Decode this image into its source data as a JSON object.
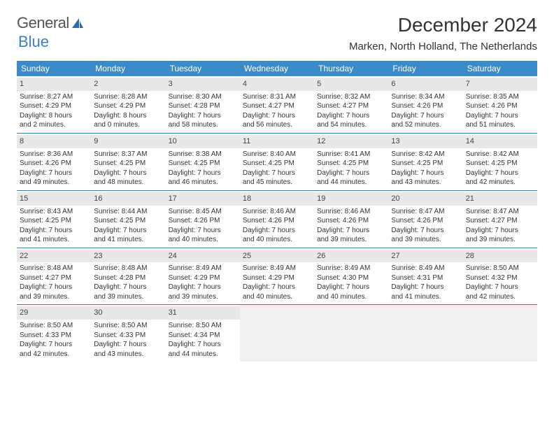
{
  "brand": {
    "part1": "General",
    "part2": "Blue"
  },
  "title": "December 2024",
  "location": "Marken, North Holland, The Netherlands",
  "weekdays": [
    "Sunday",
    "Monday",
    "Tuesday",
    "Wednesday",
    "Thursday",
    "Friday",
    "Saturday"
  ],
  "colors": {
    "header_bg": "#3b8bc9",
    "header_text": "#ffffff",
    "daynum_bg": "#e8e8e8",
    "week_divider": "#3b7fa8",
    "brand_blue": "#3b7fc4",
    "text": "#333333",
    "empty_bg": "#f0f0f0"
  },
  "fonts": {
    "month_title_pt": 28,
    "location_pt": 15,
    "weekday_pt": 12,
    "daynum_pt": 11,
    "body_pt": 10
  },
  "weeks": [
    [
      {
        "n": "1",
        "sunrise": "Sunrise: 8:27 AM",
        "sunset": "Sunset: 4:29 PM",
        "day1": "Daylight: 8 hours",
        "day2": "and 2 minutes."
      },
      {
        "n": "2",
        "sunrise": "Sunrise: 8:28 AM",
        "sunset": "Sunset: 4:29 PM",
        "day1": "Daylight: 8 hours",
        "day2": "and 0 minutes."
      },
      {
        "n": "3",
        "sunrise": "Sunrise: 8:30 AM",
        "sunset": "Sunset: 4:28 PM",
        "day1": "Daylight: 7 hours",
        "day2": "and 58 minutes."
      },
      {
        "n": "4",
        "sunrise": "Sunrise: 8:31 AM",
        "sunset": "Sunset: 4:27 PM",
        "day1": "Daylight: 7 hours",
        "day2": "and 56 minutes."
      },
      {
        "n": "5",
        "sunrise": "Sunrise: 8:32 AM",
        "sunset": "Sunset: 4:27 PM",
        "day1": "Daylight: 7 hours",
        "day2": "and 54 minutes."
      },
      {
        "n": "6",
        "sunrise": "Sunrise: 8:34 AM",
        "sunset": "Sunset: 4:26 PM",
        "day1": "Daylight: 7 hours",
        "day2": "and 52 minutes."
      },
      {
        "n": "7",
        "sunrise": "Sunrise: 8:35 AM",
        "sunset": "Sunset: 4:26 PM",
        "day1": "Daylight: 7 hours",
        "day2": "and 51 minutes."
      }
    ],
    [
      {
        "n": "8",
        "sunrise": "Sunrise: 8:36 AM",
        "sunset": "Sunset: 4:26 PM",
        "day1": "Daylight: 7 hours",
        "day2": "and 49 minutes."
      },
      {
        "n": "9",
        "sunrise": "Sunrise: 8:37 AM",
        "sunset": "Sunset: 4:25 PM",
        "day1": "Daylight: 7 hours",
        "day2": "and 48 minutes."
      },
      {
        "n": "10",
        "sunrise": "Sunrise: 8:38 AM",
        "sunset": "Sunset: 4:25 PM",
        "day1": "Daylight: 7 hours",
        "day2": "and 46 minutes."
      },
      {
        "n": "11",
        "sunrise": "Sunrise: 8:40 AM",
        "sunset": "Sunset: 4:25 PM",
        "day1": "Daylight: 7 hours",
        "day2": "and 45 minutes."
      },
      {
        "n": "12",
        "sunrise": "Sunrise: 8:41 AM",
        "sunset": "Sunset: 4:25 PM",
        "day1": "Daylight: 7 hours",
        "day2": "and 44 minutes."
      },
      {
        "n": "13",
        "sunrise": "Sunrise: 8:42 AM",
        "sunset": "Sunset: 4:25 PM",
        "day1": "Daylight: 7 hours",
        "day2": "and 43 minutes."
      },
      {
        "n": "14",
        "sunrise": "Sunrise: 8:42 AM",
        "sunset": "Sunset: 4:25 PM",
        "day1": "Daylight: 7 hours",
        "day2": "and 42 minutes."
      }
    ],
    [
      {
        "n": "15",
        "sunrise": "Sunrise: 8:43 AM",
        "sunset": "Sunset: 4:25 PM",
        "day1": "Daylight: 7 hours",
        "day2": "and 41 minutes."
      },
      {
        "n": "16",
        "sunrise": "Sunrise: 8:44 AM",
        "sunset": "Sunset: 4:25 PM",
        "day1": "Daylight: 7 hours",
        "day2": "and 41 minutes."
      },
      {
        "n": "17",
        "sunrise": "Sunrise: 8:45 AM",
        "sunset": "Sunset: 4:26 PM",
        "day1": "Daylight: 7 hours",
        "day2": "and 40 minutes."
      },
      {
        "n": "18",
        "sunrise": "Sunrise: 8:46 AM",
        "sunset": "Sunset: 4:26 PM",
        "day1": "Daylight: 7 hours",
        "day2": "and 40 minutes."
      },
      {
        "n": "19",
        "sunrise": "Sunrise: 8:46 AM",
        "sunset": "Sunset: 4:26 PM",
        "day1": "Daylight: 7 hours",
        "day2": "and 39 minutes."
      },
      {
        "n": "20",
        "sunrise": "Sunrise: 8:47 AM",
        "sunset": "Sunset: 4:26 PM",
        "day1": "Daylight: 7 hours",
        "day2": "and 39 minutes."
      },
      {
        "n": "21",
        "sunrise": "Sunrise: 8:47 AM",
        "sunset": "Sunset: 4:27 PM",
        "day1": "Daylight: 7 hours",
        "day2": "and 39 minutes."
      }
    ],
    [
      {
        "n": "22",
        "sunrise": "Sunrise: 8:48 AM",
        "sunset": "Sunset: 4:27 PM",
        "day1": "Daylight: 7 hours",
        "day2": "and 39 minutes."
      },
      {
        "n": "23",
        "sunrise": "Sunrise: 8:48 AM",
        "sunset": "Sunset: 4:28 PM",
        "day1": "Daylight: 7 hours",
        "day2": "and 39 minutes."
      },
      {
        "n": "24",
        "sunrise": "Sunrise: 8:49 AM",
        "sunset": "Sunset: 4:29 PM",
        "day1": "Daylight: 7 hours",
        "day2": "and 39 minutes."
      },
      {
        "n": "25",
        "sunrise": "Sunrise: 8:49 AM",
        "sunset": "Sunset: 4:29 PM",
        "day1": "Daylight: 7 hours",
        "day2": "and 40 minutes."
      },
      {
        "n": "26",
        "sunrise": "Sunrise: 8:49 AM",
        "sunset": "Sunset: 4:30 PM",
        "day1": "Daylight: 7 hours",
        "day2": "and 40 minutes."
      },
      {
        "n": "27",
        "sunrise": "Sunrise: 8:49 AM",
        "sunset": "Sunset: 4:31 PM",
        "day1": "Daylight: 7 hours",
        "day2": "and 41 minutes."
      },
      {
        "n": "28",
        "sunrise": "Sunrise: 8:50 AM",
        "sunset": "Sunset: 4:32 PM",
        "day1": "Daylight: 7 hours",
        "day2": "and 42 minutes."
      }
    ],
    [
      {
        "n": "29",
        "sunrise": "Sunrise: 8:50 AM",
        "sunset": "Sunset: 4:33 PM",
        "day1": "Daylight: 7 hours",
        "day2": "and 42 minutes."
      },
      {
        "n": "30",
        "sunrise": "Sunrise: 8:50 AM",
        "sunset": "Sunset: 4:33 PM",
        "day1": "Daylight: 7 hours",
        "day2": "and 43 minutes."
      },
      {
        "n": "31",
        "sunrise": "Sunrise: 8:50 AM",
        "sunset": "Sunset: 4:34 PM",
        "day1": "Daylight: 7 hours",
        "day2": "and 44 minutes."
      },
      null,
      null,
      null,
      null
    ]
  ]
}
